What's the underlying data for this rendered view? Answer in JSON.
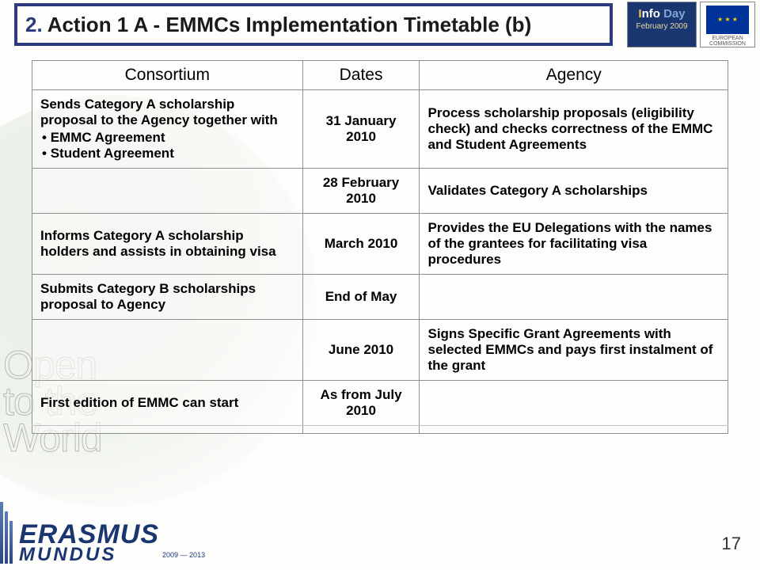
{
  "title": {
    "num": "2.",
    "text": " Action 1 A  - EMMCs Implementation Timetable (b)"
  },
  "logos": {
    "infoday": {
      "line1a": "Info",
      "line1b": " Day",
      "line2": "February 2009"
    },
    "eu": {
      "line1": "EUROPEAN",
      "line2": "COMMISSION"
    },
    "erasmus": {
      "line1": "ERASMUS",
      "line2": "MUNDUS",
      "years": "2009 — 2013"
    }
  },
  "watermark": {
    "l1": "Open",
    "l2": "to the",
    "l3": "World"
  },
  "table": {
    "headers": [
      "Consortium",
      "Dates",
      "Agency"
    ],
    "rows": [
      {
        "consortium_pre": "Sends Category A scholarship proposal to the Agency together with",
        "consortium_items": [
          "EMMC Agreement",
          "Student Agreement"
        ],
        "dates": "31 January 2010",
        "agency": "Process scholarship proposals (eligibility check) and checks correctness of the EMMC and Student Agreements"
      },
      {
        "consortium_pre": "",
        "dates": "28 February 2010",
        "agency": "Validates Category A scholarships"
      },
      {
        "consortium_pre": "Informs Category A scholarship holders and assists in obtaining visa",
        "dates": "March 2010",
        "agency": "Provides the EU Delegations with the names of the grantees for facilitating visa procedures"
      },
      {
        "consortium_pre": "Submits Category B scholarships proposal to Agency",
        "dates": "End of May",
        "agency": ""
      },
      {
        "consortium_pre": "",
        "dates": "June 2010",
        "agency": "Signs Specific Grant Agreements with selected EMMCs and pays first instalment of the grant"
      },
      {
        "consortium_pre": "First edition of EMMC can start",
        "dates": "As from July 2010",
        "agency": ""
      }
    ]
  },
  "page_number": "17"
}
